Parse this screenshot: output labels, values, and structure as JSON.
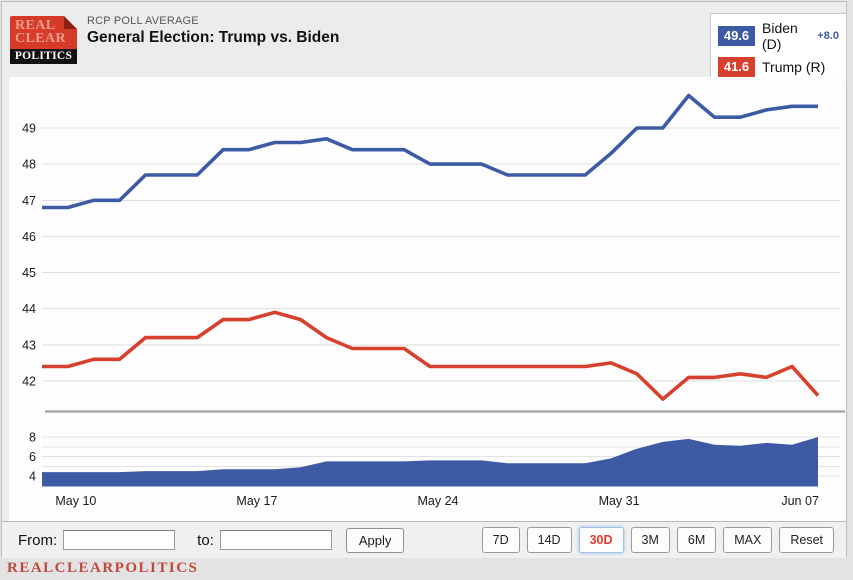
{
  "header": {
    "kicker": "RCP POLL AVERAGE",
    "title": "General Election: Trump vs. Biden",
    "logo": {
      "line1": "REAL",
      "line2": "CLEAR",
      "line3": "POLITICS"
    }
  },
  "legend": {
    "biden": {
      "value": "49.6",
      "label": "Biden (D)",
      "spread": "+8.0",
      "color": "#3d5ba5"
    },
    "trump": {
      "value": "41.6",
      "label": "Trump (R)",
      "color": "#d6402d"
    }
  },
  "controls": {
    "from_label": "From:",
    "from_value": "",
    "to_label": "to:",
    "to_value": "",
    "apply_label": "Apply",
    "range_buttons": [
      {
        "label": "7D",
        "active": false
      },
      {
        "label": "14D",
        "active": false
      },
      {
        "label": "30D",
        "active": true
      },
      {
        "label": "3M",
        "active": false
      },
      {
        "label": "6M",
        "active": false
      },
      {
        "label": "MAX",
        "active": false
      },
      {
        "label": "Reset",
        "active": false
      }
    ]
  },
  "footer_brand": "REALCLEARPOLITICS",
  "colors": {
    "biden_line": "#3d5ba5",
    "trump_line": "#d6402d",
    "spread_area": "#3d5ba5",
    "gridline": "#dedede",
    "separator": "#a3a3a3",
    "active_range_text": "#e23b2e"
  },
  "chart_data": [
    {
      "type": "line",
      "title": "General Election: Trump vs. Biden",
      "x": [
        "May 09",
        "May 10",
        "May 11",
        "May 12",
        "May 13",
        "May 14",
        "May 15",
        "May 16",
        "May 17",
        "May 18",
        "May 19",
        "May 20",
        "May 21",
        "May 22",
        "May 23",
        "May 24",
        "May 25",
        "May 26",
        "May 27",
        "May 28",
        "May 29",
        "May 30",
        "May 31",
        "Jun 01",
        "Jun 02",
        "Jun 03",
        "Jun 04",
        "Jun 05",
        "Jun 06",
        "Jun 07",
        "Jun 08"
      ],
      "series": [
        {
          "name": "Biden (D)",
          "color": "#3d5ba5",
          "values": [
            46.8,
            46.8,
            47.0,
            47.0,
            47.7,
            47.7,
            47.7,
            48.4,
            48.4,
            48.6,
            48.6,
            48.7,
            48.4,
            48.4,
            48.4,
            48.0,
            48.0,
            48.0,
            47.7,
            47.7,
            47.7,
            47.7,
            48.3,
            49.0,
            49.0,
            49.9,
            49.3,
            49.3,
            49.5,
            49.6,
            49.6
          ]
        },
        {
          "name": "Trump (R)",
          "color": "#d6402d",
          "values": [
            42.4,
            42.4,
            42.6,
            42.6,
            43.2,
            43.2,
            43.2,
            43.7,
            43.7,
            43.9,
            43.7,
            43.2,
            42.9,
            42.9,
            42.9,
            42.4,
            42.4,
            42.4,
            42.4,
            42.4,
            42.4,
            42.4,
            42.5,
            42.2,
            41.5,
            42.1,
            42.1,
            42.2,
            42.1,
            42.4,
            41.6
          ]
        }
      ],
      "yticks": [
        42,
        43,
        44,
        45,
        46,
        47,
        48,
        49
      ],
      "ylim": [
        41.2,
        50.2
      ],
      "grid": true,
      "legend_position": "top-right",
      "xticks": [
        {
          "label": "May 10",
          "index": 1
        },
        {
          "label": "May 17",
          "index": 8
        },
        {
          "label": "May 24",
          "index": 15
        },
        {
          "label": "May 31",
          "index": 22
        },
        {
          "label": "Jun 07",
          "index": 29
        }
      ]
    },
    {
      "type": "area",
      "name": "Spread: Biden +8.0",
      "color": "#3d5ba5",
      "values": [
        4.4,
        4.4,
        4.4,
        4.4,
        4.5,
        4.5,
        4.5,
        4.7,
        4.7,
        4.7,
        4.9,
        5.5,
        5.5,
        5.5,
        5.5,
        5.6,
        5.6,
        5.6,
        5.3,
        5.3,
        5.3,
        5.3,
        5.8,
        6.8,
        7.5,
        7.8,
        7.2,
        7.1,
        7.4,
        7.2,
        8.0
      ],
      "label_yticks": [
        8,
        6,
        4
      ],
      "grid_yticks": [
        4,
        5,
        6,
        7,
        8
      ],
      "ylim": [
        3,
        10.5
      ]
    }
  ]
}
